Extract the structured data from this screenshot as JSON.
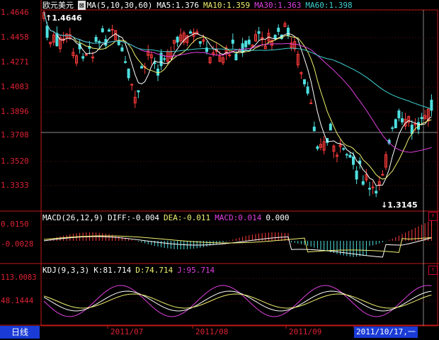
{
  "main_header": {
    "symbol": "欧元美元",
    "ma_label": "MA(5,10,30,60)",
    "ma5": "MA5:1.376",
    "ma10": "MA10:1.359",
    "ma30": "MA30:1.363",
    "ma60": "MA60:1.398"
  },
  "macd_header": {
    "label": "MACD(26,12,9)",
    "diff": "DIFF:-0.004",
    "dea": "DEA:-0.011",
    "macd": "MACD:0.014",
    "extra": "0.000"
  },
  "kdj_header": {
    "label": "KDJ(9,3,3)",
    "k": "K:81.714",
    "d": "D:74.714",
    "j": "J:95.714"
  },
  "price_axis": [
    "1.4646",
    "1.4458",
    "1.4271",
    "1.4083",
    "1.3896",
    "1.3708",
    "1.3520",
    "1.3333"
  ],
  "macd_axis": [
    "0.0150",
    "-0.0028"
  ],
  "kdj_axis": [
    "113.0083",
    "48.1444"
  ],
  "max_label": "1.4646",
  "min_label": "1.3145",
  "date_labels": [
    "2011/07",
    "2011/08",
    "2011/09"
  ],
  "cursor_date": "2011/10/17,一",
  "period_tab": "日线",
  "colors": {
    "up": "#ff3b3b",
    "down": "#4fe0e0",
    "ma5": "#ffffff",
    "ma10": "#f0f070",
    "ma30": "#e040e0",
    "ma60": "#40d0d0",
    "axis": "#c01818"
  }
}
